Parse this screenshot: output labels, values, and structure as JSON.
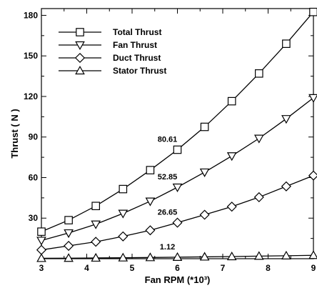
{
  "chart_data": {
    "type": "line",
    "xlabel": "Fan RPM (*10³)",
    "ylabel": "Thrust ( N )",
    "xlim": [
      3,
      9
    ],
    "ylim": [
      0,
      185
    ],
    "xticks": [
      3,
      4,
      5,
      6,
      7,
      8,
      9
    ],
    "yticks": [
      30,
      60,
      90,
      120,
      150,
      180
    ],
    "grid": false,
    "legend_position": "top-left",
    "x": [
      3.0,
      3.6,
      4.2,
      4.8,
      5.4,
      6.0,
      6.6,
      7.2,
      7.8,
      8.4,
      9.0
    ],
    "series": [
      {
        "name": "Total Thrust",
        "marker": "square",
        "values": [
          20,
          28.5,
          39,
          51.5,
          65.5,
          80.61,
          97.5,
          116.5,
          137,
          159,
          182.5
        ]
      },
      {
        "name": "Fan Thrust",
        "marker": "triangle-down",
        "values": [
          13.5,
          19,
          25.5,
          33.5,
          42.5,
          52.85,
          64,
          76,
          89,
          103.5,
          119
        ]
      },
      {
        "name": "Duct Thrust",
        "marker": "diamond",
        "values": [
          6.5,
          9.5,
          12.5,
          16.5,
          21,
          26.65,
          32.5,
          38.5,
          45.5,
          53.5,
          61.5
        ]
      },
      {
        "name": "Stator Thrust",
        "marker": "triangle-up",
        "values": [
          0.3,
          0.4,
          0.55,
          0.7,
          0.9,
          1.12,
          1.35,
          1.6,
          1.9,
          2.2,
          2.5
        ]
      }
    ],
    "annotations": [
      {
        "text": "80.61",
        "x": 6.0,
        "y": 80.61,
        "series": "Total Thrust"
      },
      {
        "text": "52.85",
        "x": 6.0,
        "y": 52.85,
        "series": "Fan Thrust"
      },
      {
        "text": "26.65",
        "x": 6.0,
        "y": 26.65,
        "series": "Duct Thrust"
      },
      {
        "text": "1.12",
        "x": 6.0,
        "y": 1.12,
        "series": "Stator Thrust"
      }
    ]
  }
}
